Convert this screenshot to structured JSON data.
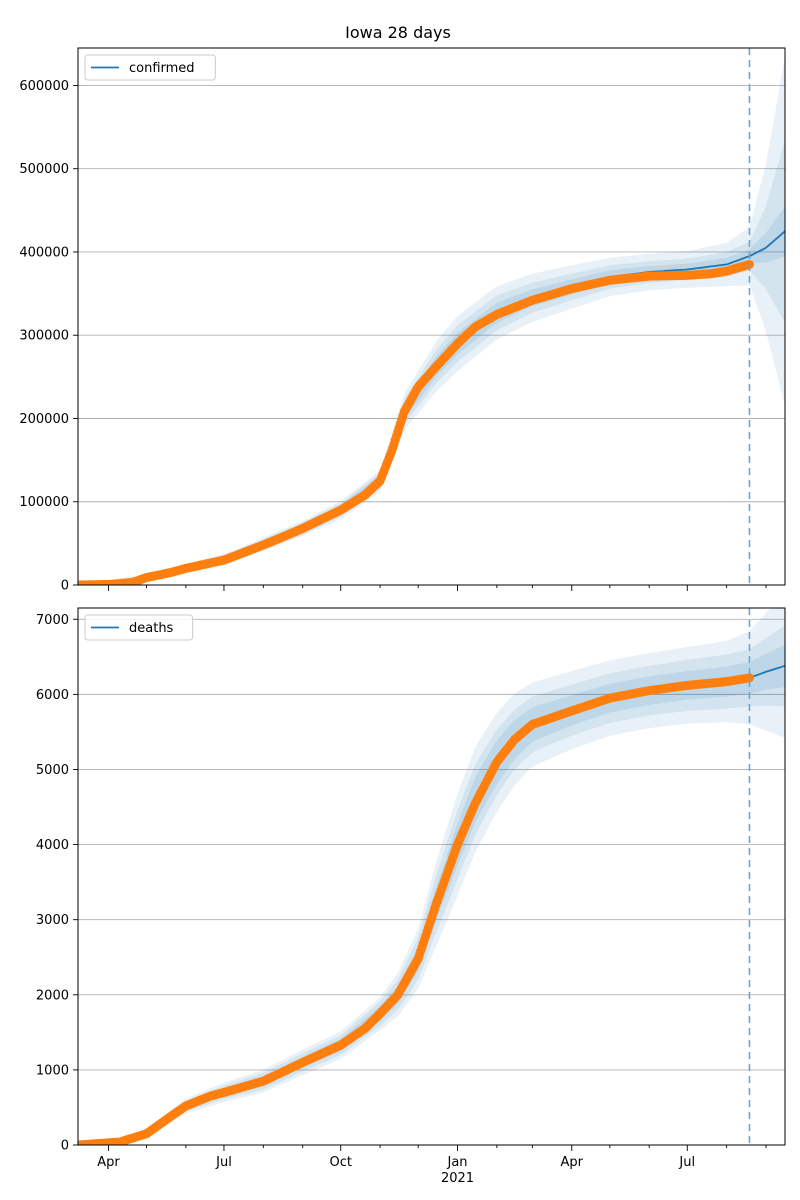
{
  "title": "Iowa 28 days",
  "colors": {
    "model": "#1f77b4",
    "observed": "#ff7f0e",
    "band": "#1f77b4",
    "marker_line": "#6ba6cf"
  },
  "x_axis": {
    "start": "2020-03-08",
    "end": "2021-09-16",
    "forecast_start": "2021-08-19",
    "ticks": [
      {
        "date": "2020-04-01",
        "label": "Apr"
      },
      {
        "date": "2020-07-01",
        "label": "Jul"
      },
      {
        "date": "2020-10-01",
        "label": "Oct"
      },
      {
        "date": "2021-01-01",
        "label": "Jan",
        "sublabel": "2021"
      },
      {
        "date": "2021-04-01",
        "label": "Apr"
      },
      {
        "date": "2021-07-01",
        "label": "Jul"
      }
    ],
    "minor_ticks": [
      "2020-05-01",
      "2020-06-01",
      "2020-08-01",
      "2020-09-01",
      "2020-11-01",
      "2020-12-01",
      "2021-02-01",
      "2021-03-01",
      "2021-05-01",
      "2021-06-01",
      "2021-08-01",
      "2021-09-01"
    ]
  },
  "chart_data": [
    {
      "type": "line",
      "legend": "confirmed",
      "legend_position": "top-left",
      "ylim": [
        0,
        645000
      ],
      "yticks": [
        0,
        100000,
        200000,
        300000,
        400000,
        500000,
        600000
      ],
      "grid": "y",
      "observed": {
        "dates": [
          "2020-03-08",
          "2020-04-01",
          "2020-04-20",
          "2020-05-01",
          "2020-05-20",
          "2020-06-01",
          "2020-07-01",
          "2020-08-01",
          "2020-08-20",
          "2020-09-01",
          "2020-10-01",
          "2020-10-20",
          "2020-11-01",
          "2020-11-10",
          "2020-11-20",
          "2020-12-01",
          "2020-12-15",
          "2021-01-01",
          "2021-01-15",
          "2021-02-01",
          "2021-03-01",
          "2021-04-01",
          "2021-05-01",
          "2021-06-01",
          "2021-07-01",
          "2021-07-20",
          "2021-08-01",
          "2021-08-19"
        ],
        "values": [
          0,
          600,
          3000,
          9000,
          15000,
          20000,
          30000,
          48000,
          60000,
          68000,
          90000,
          108000,
          125000,
          160000,
          208000,
          238000,
          262000,
          290000,
          310000,
          325000,
          342000,
          356000,
          366000,
          371000,
          372000,
          374000,
          377000,
          385000
        ]
      },
      "forecast": {
        "dates": [
          "2020-03-08",
          "2020-05-01",
          "2020-07-01",
          "2020-09-01",
          "2020-10-01",
          "2020-11-01",
          "2020-11-20",
          "2020-12-15",
          "2021-01-01",
          "2021-02-01",
          "2021-03-01",
          "2021-04-01",
          "2021-05-01",
          "2021-06-01",
          "2021-07-01",
          "2021-08-01",
          "2021-08-19",
          "2021-09-01",
          "2021-09-16"
        ],
        "values": [
          0,
          9000,
          30000,
          68000,
          90000,
          125000,
          208000,
          262000,
          290000,
          327000,
          345000,
          358000,
          370000,
          376000,
          379000,
          385000,
          395000,
          405000,
          425000
        ],
        "inner_band": [
          0,
          1500,
          3500,
          5000,
          6000,
          7000,
          9000,
          12000,
          13000,
          12000,
          10000,
          9000,
          8000,
          7000,
          7000,
          8000,
          8000,
          18000,
          30000
        ],
        "middle_band": [
          0,
          2500,
          5000,
          7000,
          8000,
          10000,
          15000,
          20000,
          22000,
          21000,
          18000,
          16000,
          14000,
          13000,
          13000,
          15000,
          17000,
          50000,
          110000
        ],
        "outer_band": [
          0,
          4000,
          7000,
          9000,
          11000,
          13000,
          22000,
          30000,
          33000,
          32000,
          29000,
          26000,
          23000,
          22000,
          22000,
          26000,
          35000,
          100000,
          210000
        ]
      }
    },
    {
      "type": "line",
      "legend": "deaths",
      "legend_position": "top-left",
      "ylim": [
        0,
        7150
      ],
      "yticks": [
        0,
        1000,
        2000,
        3000,
        4000,
        5000,
        6000,
        7000
      ],
      "grid": "y",
      "observed": {
        "dates": [
          "2020-03-08",
          "2020-04-10",
          "2020-05-01",
          "2020-05-20",
          "2020-06-01",
          "2020-06-20",
          "2020-07-01",
          "2020-08-01",
          "2020-09-01",
          "2020-10-01",
          "2020-10-20",
          "2020-11-01",
          "2020-11-15",
          "2020-12-01",
          "2020-12-15",
          "2021-01-01",
          "2021-01-15",
          "2021-02-01",
          "2021-02-15",
          "2021-03-01",
          "2021-04-01",
          "2021-05-01",
          "2021-06-01",
          "2021-07-01",
          "2021-08-01",
          "2021-08-19"
        ],
        "values": [
          0,
          40,
          150,
          380,
          520,
          650,
          700,
          850,
          1100,
          1330,
          1550,
          1750,
          2000,
          2480,
          3200,
          4000,
          4550,
          5100,
          5400,
          5600,
          5780,
          5950,
          6050,
          6120,
          6170,
          6220
        ]
      },
      "forecast": {
        "dates": [
          "2020-03-08",
          "2020-04-10",
          "2020-05-01",
          "2020-06-01",
          "2020-07-01",
          "2020-08-01",
          "2020-09-01",
          "2020-10-01",
          "2020-11-01",
          "2020-11-15",
          "2020-12-01",
          "2020-12-15",
          "2021-01-01",
          "2021-01-15",
          "2021-02-01",
          "2021-02-15",
          "2021-03-01",
          "2021-04-01",
          "2021-05-01",
          "2021-06-01",
          "2021-07-01",
          "2021-08-01",
          "2021-08-19",
          "2021-09-01",
          "2021-09-16"
        ],
        "values": [
          0,
          40,
          150,
          520,
          700,
          850,
          1100,
          1330,
          1750,
          2000,
          2480,
          3200,
          4000,
          4600,
          5100,
          5400,
          5600,
          5790,
          5950,
          6050,
          6120,
          6170,
          6220,
          6300,
          6380
        ],
        "inner_band": [
          0,
          10,
          20,
          40,
          50,
          60,
          70,
          80,
          100,
          120,
          160,
          220,
          280,
          300,
          290,
          260,
          230,
          200,
          190,
          190,
          190,
          200,
          210,
          240,
          280
        ],
        "middle_band": [
          0,
          15,
          35,
          70,
          90,
          110,
          120,
          130,
          160,
          200,
          280,
          380,
          460,
          470,
          440,
          400,
          370,
          340,
          330,
          330,
          340,
          360,
          380,
          450,
          540
        ],
        "outer_band": [
          0,
          25,
          55,
          100,
          130,
          150,
          170,
          180,
          220,
          290,
          400,
          560,
          680,
          700,
          660,
          610,
          560,
          520,
          500,
          500,
          510,
          540,
          620,
          780,
          960
        ]
      }
    }
  ]
}
